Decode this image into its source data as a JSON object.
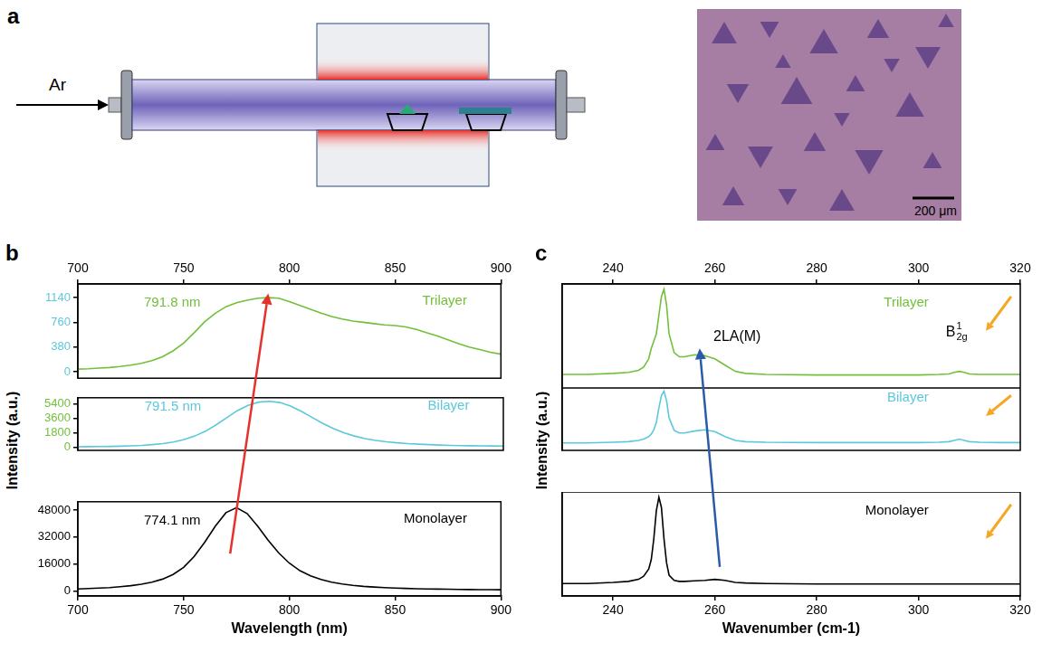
{
  "panel_a": {
    "label": "a",
    "gas": "Ar",
    "scale_bar": "200 μm"
  },
  "chart_data": [
    {
      "panel": "b",
      "type": "line",
      "x_label": "Wavelength (nm)",
      "y_label": "Intensity (a.u.)",
      "xlim": [
        700,
        900
      ],
      "xticks": [
        700,
        750,
        800,
        850,
        900
      ],
      "legend": "upper right",
      "x": [
        700,
        705,
        710,
        715,
        720,
        725,
        730,
        735,
        740,
        745,
        750,
        755,
        760,
        765,
        770,
        775,
        780,
        785,
        790,
        795,
        800,
        805,
        810,
        815,
        820,
        825,
        830,
        835,
        840,
        845,
        850,
        855,
        860,
        865,
        870,
        875,
        880,
        885,
        890,
        895,
        900
      ],
      "series": [
        {
          "name": "Trilayer",
          "color": "#72c03a",
          "annotation": "791.8 nm",
          "ylim": [
            -100,
            1350
          ],
          "yticks": [
            0,
            380,
            760,
            1140
          ],
          "values": [
            40,
            45,
            55,
            65,
            80,
            100,
            130,
            170,
            230,
            320,
            440,
            600,
            770,
            900,
            1000,
            1060,
            1100,
            1130,
            1140,
            1130,
            1080,
            1020,
            960,
            900,
            850,
            810,
            780,
            760,
            740,
            720,
            710,
            690,
            650,
            600,
            550,
            490,
            430,
            380,
            340,
            300,
            270
          ]
        },
        {
          "name": "Bilayer",
          "color": "#5cc8dc",
          "annotation": "791.5 nm",
          "ylim": [
            -400,
            6200
          ],
          "yticks": [
            0,
            1800,
            3600,
            5400
          ],
          "values": [
            60,
            70,
            80,
            100,
            130,
            170,
            230,
            320,
            450,
            650,
            950,
            1400,
            2000,
            2800,
            3700,
            4600,
            5250,
            5650,
            5750,
            5600,
            5150,
            4500,
            3750,
            3000,
            2350,
            1800,
            1400,
            1080,
            850,
            680,
            550,
            450,
            380,
            320,
            270,
            230,
            200,
            180,
            160,
            150,
            140
          ]
        },
        {
          "name": "Monolayer",
          "color": "#000000",
          "annotation": "774.1 nm",
          "ylim": [
            -3000,
            53000
          ],
          "yticks": [
            0,
            16000,
            32000,
            48000
          ],
          "values": [
            1200,
            1400,
            1700,
            2000,
            2500,
            3100,
            4000,
            5200,
            7000,
            9800,
            14000,
            20500,
            29000,
            38500,
            46500,
            49500,
            46000,
            38500,
            30000,
            22500,
            16500,
            12000,
            9000,
            6800,
            5200,
            4100,
            3300,
            2700,
            2300,
            2000,
            1700,
            1500,
            1300,
            1200,
            1100,
            1000,
            900,
            850,
            800,
            750,
            700
          ]
        }
      ]
    },
    {
      "panel": "c",
      "type": "line",
      "x_label": "Wavenumber (cm-1)",
      "y_label": "Intensity (a.u.)",
      "xlim": [
        230,
        320
      ],
      "xticks": [
        240,
        260,
        280,
        300,
        320
      ],
      "ylim": [
        0,
        1
      ],
      "tick_labels": "x",
      "legend": "upper right",
      "annotations": [
        {
          "text": "2LA(M)"
        },
        {
          "text": "B",
          "sup": "1",
          "sub": "2g"
        }
      ],
      "x": [
        230,
        235,
        240,
        243,
        245,
        246,
        247,
        247.5,
        248,
        248.5,
        249,
        249.5,
        250,
        250.5,
        251,
        252,
        253,
        254,
        256,
        258,
        260,
        262,
        264,
        266,
        270,
        280,
        290,
        300,
        304,
        306,
        307,
        308,
        309,
        310,
        312,
        316,
        320
      ],
      "series": [
        {
          "name": "Trilayer",
          "color": "#72c03a",
          "values": [
            0.13,
            0.13,
            0.14,
            0.15,
            0.17,
            0.2,
            0.28,
            0.38,
            0.45,
            0.52,
            0.7,
            0.88,
            0.95,
            0.8,
            0.52,
            0.34,
            0.3,
            0.3,
            0.32,
            0.31,
            0.28,
            0.22,
            0.16,
            0.14,
            0.13,
            0.125,
            0.125,
            0.125,
            0.13,
            0.135,
            0.15,
            0.16,
            0.15,
            0.135,
            0.13,
            0.13,
            0.13
          ]
        },
        {
          "name": "Bilayer",
          "color": "#5cc8dc",
          "values": [
            0.12,
            0.12,
            0.13,
            0.14,
            0.16,
            0.18,
            0.22,
            0.26,
            0.33,
            0.45,
            0.68,
            0.88,
            0.95,
            0.8,
            0.52,
            0.32,
            0.28,
            0.28,
            0.31,
            0.33,
            0.3,
            0.22,
            0.16,
            0.14,
            0.13,
            0.125,
            0.125,
            0.125,
            0.13,
            0.14,
            0.16,
            0.18,
            0.16,
            0.14,
            0.13,
            0.125,
            0.125
          ]
        },
        {
          "name": "Monolayer",
          "color": "#000000",
          "values": [
            0.12,
            0.12,
            0.13,
            0.14,
            0.16,
            0.19,
            0.26,
            0.35,
            0.55,
            0.82,
            0.95,
            0.85,
            0.55,
            0.32,
            0.2,
            0.15,
            0.14,
            0.14,
            0.145,
            0.15,
            0.16,
            0.15,
            0.13,
            0.125,
            0.12,
            0.115,
            0.115,
            0.115,
            0.115,
            0.115,
            0.115,
            0.115,
            0.115,
            0.115,
            0.115,
            0.115,
            0.115
          ]
        }
      ]
    }
  ]
}
